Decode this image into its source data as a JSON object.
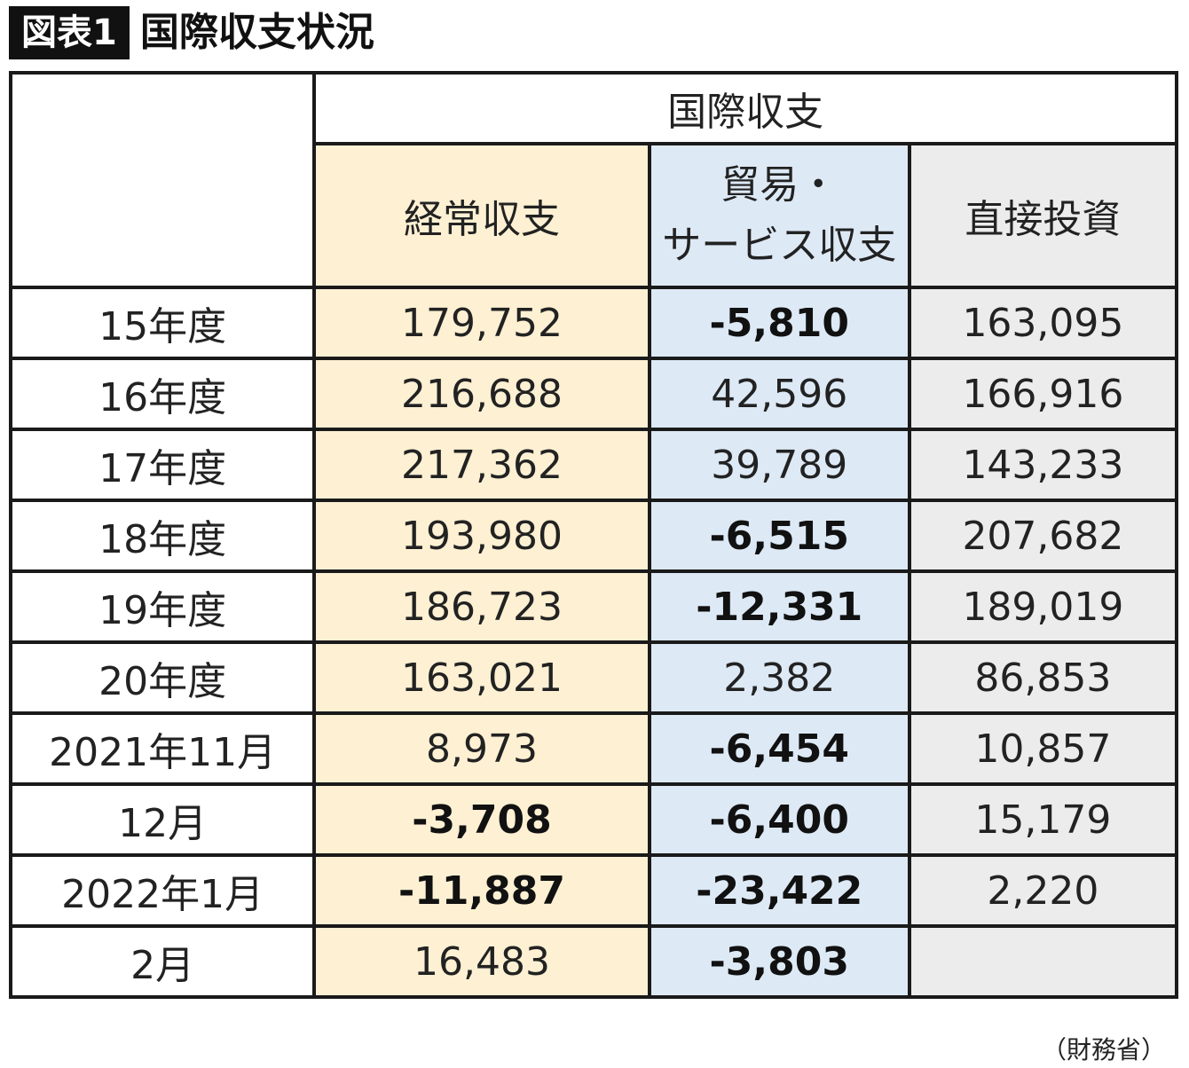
{
  "figure": {
    "label": "図表1",
    "title": "国際収支状況"
  },
  "chart_data": {
    "type": "table",
    "group_header": "国際収支",
    "columns": [
      "経常収支",
      "貿易・サービス収支",
      "直接投資"
    ],
    "column_headers_display": {
      "current": "経常収支",
      "trade_line1": "貿易・",
      "trade_line2": "サービス収支",
      "fdi": "直接投資"
    },
    "rows": [
      {
        "label": "15年度",
        "current": "179,752",
        "trade": "-5,810",
        "fdi": "163,095"
      },
      {
        "label": "16年度",
        "current": "216,688",
        "trade": "42,596",
        "fdi": "166,916"
      },
      {
        "label": "17年度",
        "current": "217,362",
        "trade": "39,789",
        "fdi": "143,233"
      },
      {
        "label": "18年度",
        "current": "193,980",
        "trade": "-6,515",
        "fdi": "207,682"
      },
      {
        "label": "19年度",
        "current": "186,723",
        "trade": "-12,331",
        "fdi": "189,019"
      },
      {
        "label": "20年度",
        "current": "163,021",
        "trade": "2,382",
        "fdi": "86,853"
      },
      {
        "label": "2021年11月",
        "current": "8,973",
        "trade": "-6,454",
        "fdi": "10,857"
      },
      {
        "label": "12月",
        "current": "-3,708",
        "trade": "-6,400",
        "fdi": "15,179"
      },
      {
        "label": "2022年1月",
        "current": "-11,887",
        "trade": "-23,422",
        "fdi": "2,220"
      },
      {
        "label": "2月",
        "current": "16,483",
        "trade": "-3,803",
        "fdi": ""
      }
    ],
    "negative_values_bold": true
  },
  "source": "（財務省）",
  "colors": {
    "current_bg": "#fdf0d3",
    "trade_bg": "#dde9f5",
    "fdi_bg": "#ececec",
    "border": "#1a1a1a",
    "label_bg": "#111111"
  }
}
